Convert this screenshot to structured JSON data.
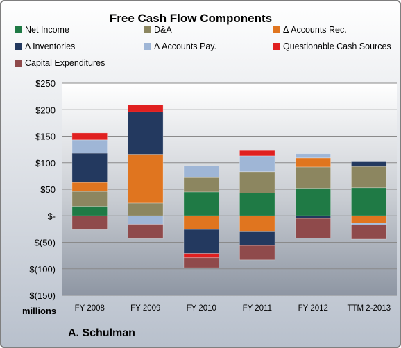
{
  "chart_data": {
    "type": "bar",
    "stacked": true,
    "title": "Free Cash Flow Components",
    "ylabel": "",
    "xlabel": "",
    "unit_label": "millions",
    "company": "A. Schulman",
    "categories": [
      "FY 2008",
      "FY 2009",
      "FY 2010",
      "FY 2011",
      "FY 2012",
      "TTM 2-2013"
    ],
    "ylim": [
      -150,
      250
    ],
    "yticks": [
      250,
      200,
      150,
      100,
      50,
      0,
      -50,
      -100,
      -150
    ],
    "ytick_labels": [
      "$250",
      "$200",
      "$150",
      "$100",
      "$50",
      "$-",
      "$(50)",
      "$(100)",
      "$(150)"
    ],
    "grid": true,
    "legend_position": "top",
    "series": [
      {
        "name": "Net Income",
        "color": "#1f7a45",
        "values": [
          18,
          0,
          45,
          43,
          52,
          53
        ]
      },
      {
        "name": "D&A",
        "color": "#8c8660",
        "values": [
          28,
          24,
          27,
          40,
          40,
          40
        ]
      },
      {
        "name": "Δ Accounts Rec.",
        "color": "#e0751f",
        "values": [
          17,
          92,
          -26,
          -29,
          17,
          -14
        ]
      },
      {
        "name": "Δ Inventories",
        "color": "#23395f",
        "values": [
          55,
          80,
          -45,
          -27,
          -5,
          10
        ]
      },
      {
        "name": "Δ Accounts Pay.",
        "color": "#9fb6d6",
        "values": [
          25,
          -16,
          22,
          30,
          8,
          -3
        ]
      },
      {
        "name": "Questionable Cash Sources",
        "color": "#e02020",
        "values": [
          13,
          13,
          -8,
          10,
          0,
          0
        ]
      },
      {
        "name": "Capital Expenditures",
        "color": "#8f4a4b",
        "values": [
          -26,
          -27,
          -19,
          -27,
          -37,
          -27
        ]
      }
    ]
  }
}
